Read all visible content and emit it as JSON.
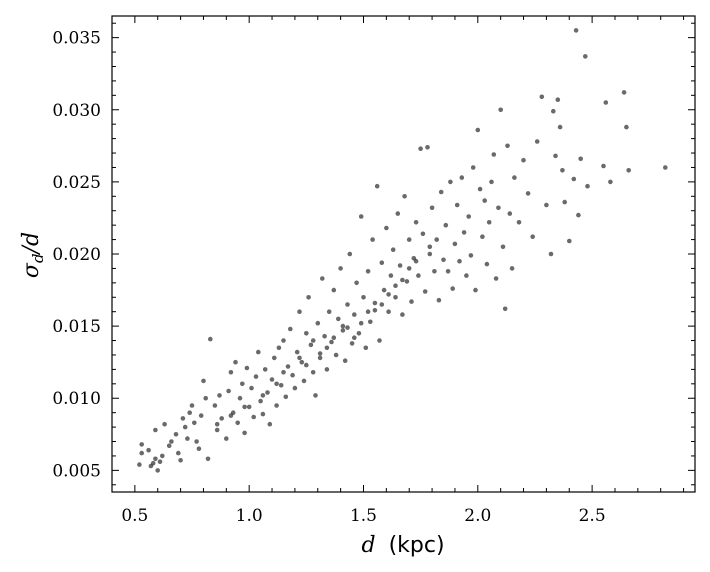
{
  "chart_data": {
    "type": "scatter",
    "title": "",
    "xlabel": {
      "var": "d",
      "unit": "(kpc)"
    },
    "ylabel": {
      "num": "σ",
      "sub": "d",
      "den": "/d"
    },
    "xlim": [
      0.4,
      2.95
    ],
    "ylim": [
      0.0035,
      0.0365
    ],
    "xticks": [
      0.5,
      1.0,
      1.5,
      2.0,
      2.5
    ],
    "xtick_labels": [
      "0.5",
      "1.0",
      "1.5",
      "2.0",
      "2.5"
    ],
    "yticks": [
      0.005,
      0.01,
      0.015,
      0.02,
      0.025,
      0.03,
      0.035
    ],
    "ytick_labels": [
      "0.005",
      "0.010",
      "0.015",
      "0.020",
      "0.025",
      "0.030",
      "0.035"
    ],
    "grid": false,
    "legend": "none",
    "marker_color": "#1a1a1a",
    "points": [
      [
        0.52,
        0.0054
      ],
      [
        0.53,
        0.0062
      ],
      [
        0.53,
        0.0068
      ],
      [
        0.56,
        0.0064
      ],
      [
        0.57,
        0.0053
      ],
      [
        0.58,
        0.0055
      ],
      [
        0.59,
        0.0058
      ],
      [
        0.59,
        0.0078
      ],
      [
        0.6,
        0.005
      ],
      [
        0.61,
        0.0056
      ],
      [
        0.62,
        0.006
      ],
      [
        0.63,
        0.0082
      ],
      [
        0.65,
        0.0067
      ],
      [
        0.66,
        0.007
      ],
      [
        0.68,
        0.0075
      ],
      [
        0.69,
        0.0062
      ],
      [
        0.7,
        0.0057
      ],
      [
        0.71,
        0.0086
      ],
      [
        0.72,
        0.008
      ],
      [
        0.73,
        0.0072
      ],
      [
        0.74,
        0.009
      ],
      [
        0.75,
        0.0095
      ],
      [
        0.76,
        0.0083
      ],
      [
        0.77,
        0.007
      ],
      [
        0.78,
        0.0065
      ],
      [
        0.79,
        0.0088
      ],
      [
        0.8,
        0.0112
      ],
      [
        0.81,
        0.01
      ],
      [
        0.82,
        0.0058
      ],
      [
        0.83,
        0.0141
      ],
      [
        0.85,
        0.0095
      ],
      [
        0.86,
        0.0078
      ],
      [
        0.87,
        0.0102
      ],
      [
        0.88,
        0.0086
      ],
      [
        0.9,
        0.0072
      ],
      [
        0.91,
        0.0105
      ],
      [
        0.92,
        0.0118
      ],
      [
        0.93,
        0.009
      ],
      [
        0.94,
        0.0125
      ],
      [
        0.95,
        0.0083
      ],
      [
        0.96,
        0.01
      ],
      [
        0.97,
        0.011
      ],
      [
        0.98,
        0.0076
      ],
      [
        0.99,
        0.0121
      ],
      [
        1.0,
        0.0094
      ],
      [
        1.01,
        0.0107
      ],
      [
        1.02,
        0.0087
      ],
      [
        1.03,
        0.0115
      ],
      [
        1.04,
        0.0132
      ],
      [
        1.05,
        0.0098
      ],
      [
        1.06,
        0.0089
      ],
      [
        1.07,
        0.012
      ],
      [
        1.08,
        0.0104
      ],
      [
        1.09,
        0.0082
      ],
      [
        1.1,
        0.0113
      ],
      [
        1.11,
        0.0128
      ],
      [
        1.12,
        0.0095
      ],
      [
        1.13,
        0.0135
      ],
      [
        1.14,
        0.0109
      ],
      [
        1.15,
        0.014
      ],
      [
        1.16,
        0.0101
      ],
      [
        1.17,
        0.0122
      ],
      [
        1.18,
        0.0148
      ],
      [
        1.19,
        0.0116
      ],
      [
        1.2,
        0.0107
      ],
      [
        1.21,
        0.0132
      ],
      [
        1.22,
        0.016
      ],
      [
        1.23,
        0.0125
      ],
      [
        1.24,
        0.0112
      ],
      [
        1.25,
        0.0145
      ],
      [
        1.26,
        0.017
      ],
      [
        1.27,
        0.0137
      ],
      [
        1.28,
        0.0118
      ],
      [
        1.29,
        0.0102
      ],
      [
        1.3,
        0.0152
      ],
      [
        1.31,
        0.0128
      ],
      [
        1.32,
        0.0183
      ],
      [
        1.33,
        0.0143
      ],
      [
        1.34,
        0.012
      ],
      [
        1.35,
        0.016
      ],
      [
        1.36,
        0.0139
      ],
      [
        1.37,
        0.0175
      ],
      [
        1.38,
        0.013
      ],
      [
        1.39,
        0.0155
      ],
      [
        1.4,
        0.019
      ],
      [
        1.41,
        0.0147
      ],
      [
        1.42,
        0.0126
      ],
      [
        1.43,
        0.0165
      ],
      [
        1.44,
        0.02
      ],
      [
        1.45,
        0.0138
      ],
      [
        1.46,
        0.0158
      ],
      [
        1.47,
        0.018
      ],
      [
        1.48,
        0.0145
      ],
      [
        1.49,
        0.0226
      ],
      [
        1.5,
        0.017
      ],
      [
        1.51,
        0.0135
      ],
      [
        1.52,
        0.0188
      ],
      [
        1.53,
        0.0153
      ],
      [
        1.54,
        0.021
      ],
      [
        1.55,
        0.0166
      ],
      [
        1.56,
        0.0247
      ],
      [
        1.57,
        0.014
      ],
      [
        1.58,
        0.0194
      ],
      [
        1.59,
        0.0175
      ],
      [
        1.6,
        0.0218
      ],
      [
        1.61,
        0.016
      ],
      [
        1.62,
        0.0185
      ],
      [
        1.63,
        0.0203
      ],
      [
        1.64,
        0.017
      ],
      [
        1.65,
        0.0228
      ],
      [
        1.66,
        0.0192
      ],
      [
        1.67,
        0.0158
      ],
      [
        1.68,
        0.024
      ],
      [
        1.69,
        0.0181
      ],
      [
        1.7,
        0.021
      ],
      [
        1.71,
        0.0167
      ],
      [
        1.72,
        0.0197
      ],
      [
        1.73,
        0.0222
      ],
      [
        1.74,
        0.0185
      ],
      [
        1.75,
        0.0273
      ],
      [
        1.76,
        0.0214
      ],
      [
        1.77,
        0.0174
      ],
      [
        1.78,
        0.0274
      ],
      [
        1.79,
        0.02
      ],
      [
        1.8,
        0.0232
      ],
      [
        1.81,
        0.0188
      ],
      [
        1.82,
        0.021
      ],
      [
        1.83,
        0.0168
      ],
      [
        1.84,
        0.0243
      ],
      [
        1.85,
        0.0196
      ],
      [
        1.86,
        0.022
      ],
      [
        1.87,
        0.0188
      ],
      [
        1.88,
        0.025
      ],
      [
        1.89,
        0.0176
      ],
      [
        1.9,
        0.0207
      ],
      [
        1.91,
        0.0234
      ],
      [
        1.92,
        0.0195
      ],
      [
        1.93,
        0.0253
      ],
      [
        1.94,
        0.0215
      ],
      [
        1.95,
        0.0185
      ],
      [
        1.96,
        0.0226
      ],
      [
        1.97,
        0.0199
      ],
      [
        1.98,
        0.026
      ],
      [
        1.99,
        0.0175
      ],
      [
        2.0,
        0.0286
      ],
      [
        2.01,
        0.0245
      ],
      [
        2.02,
        0.0212
      ],
      [
        2.03,
        0.0237
      ],
      [
        2.04,
        0.0193
      ],
      [
        2.05,
        0.0222
      ],
      [
        2.06,
        0.025
      ],
      [
        2.07,
        0.0269
      ],
      [
        2.08,
        0.0183
      ],
      [
        2.09,
        0.0232
      ],
      [
        2.1,
        0.03
      ],
      [
        2.11,
        0.0205
      ],
      [
        2.12,
        0.0162
      ],
      [
        2.13,
        0.0275
      ],
      [
        2.14,
        0.0228
      ],
      [
        2.15,
        0.019
      ],
      [
        2.16,
        0.0253
      ],
      [
        2.18,
        0.0222
      ],
      [
        2.2,
        0.0265
      ],
      [
        2.22,
        0.0242
      ],
      [
        2.24,
        0.0212
      ],
      [
        2.26,
        0.0278
      ],
      [
        2.28,
        0.0309
      ],
      [
        2.3,
        0.0234
      ],
      [
        2.32,
        0.02
      ],
      [
        2.33,
        0.0299
      ],
      [
        2.34,
        0.0268
      ],
      [
        2.35,
        0.0307
      ],
      [
        2.36,
        0.0288
      ],
      [
        2.37,
        0.0258
      ],
      [
        2.38,
        0.0236
      ],
      [
        2.4,
        0.0209
      ],
      [
        2.42,
        0.0252
      ],
      [
        2.43,
        0.0355
      ],
      [
        2.44,
        0.0227
      ],
      [
        2.45,
        0.0266
      ],
      [
        2.47,
        0.0337
      ],
      [
        2.48,
        0.0247
      ],
      [
        2.55,
        0.0261
      ],
      [
        2.56,
        0.0305
      ],
      [
        2.58,
        0.025
      ],
      [
        2.64,
        0.0312
      ],
      [
        2.65,
        0.0288
      ],
      [
        2.66,
        0.0258
      ],
      [
        2.82,
        0.026
      ],
      [
        1.15,
        0.0118
      ],
      [
        1.22,
        0.0128
      ],
      [
        1.28,
        0.014
      ],
      [
        1.34,
        0.0135
      ],
      [
        1.41,
        0.015
      ],
      [
        1.46,
        0.0142
      ],
      [
        1.52,
        0.016
      ],
      [
        1.58,
        0.0165
      ],
      [
        1.64,
        0.0178
      ],
      [
        1.7,
        0.019
      ],
      [
        1.06,
        0.0102
      ],
      [
        1.12,
        0.011
      ],
      [
        0.98,
        0.0094
      ],
      [
        0.92,
        0.0088
      ],
      [
        0.86,
        0.0082
      ],
      [
        1.25,
        0.0123
      ],
      [
        1.31,
        0.0131
      ],
      [
        1.37,
        0.0142
      ],
      [
        1.43,
        0.0149
      ],
      [
        1.49,
        0.0152
      ],
      [
        1.55,
        0.0161
      ],
      [
        1.61,
        0.0172
      ],
      [
        1.67,
        0.0182
      ],
      [
        1.73,
        0.0195
      ],
      [
        1.79,
        0.0205
      ]
    ]
  }
}
